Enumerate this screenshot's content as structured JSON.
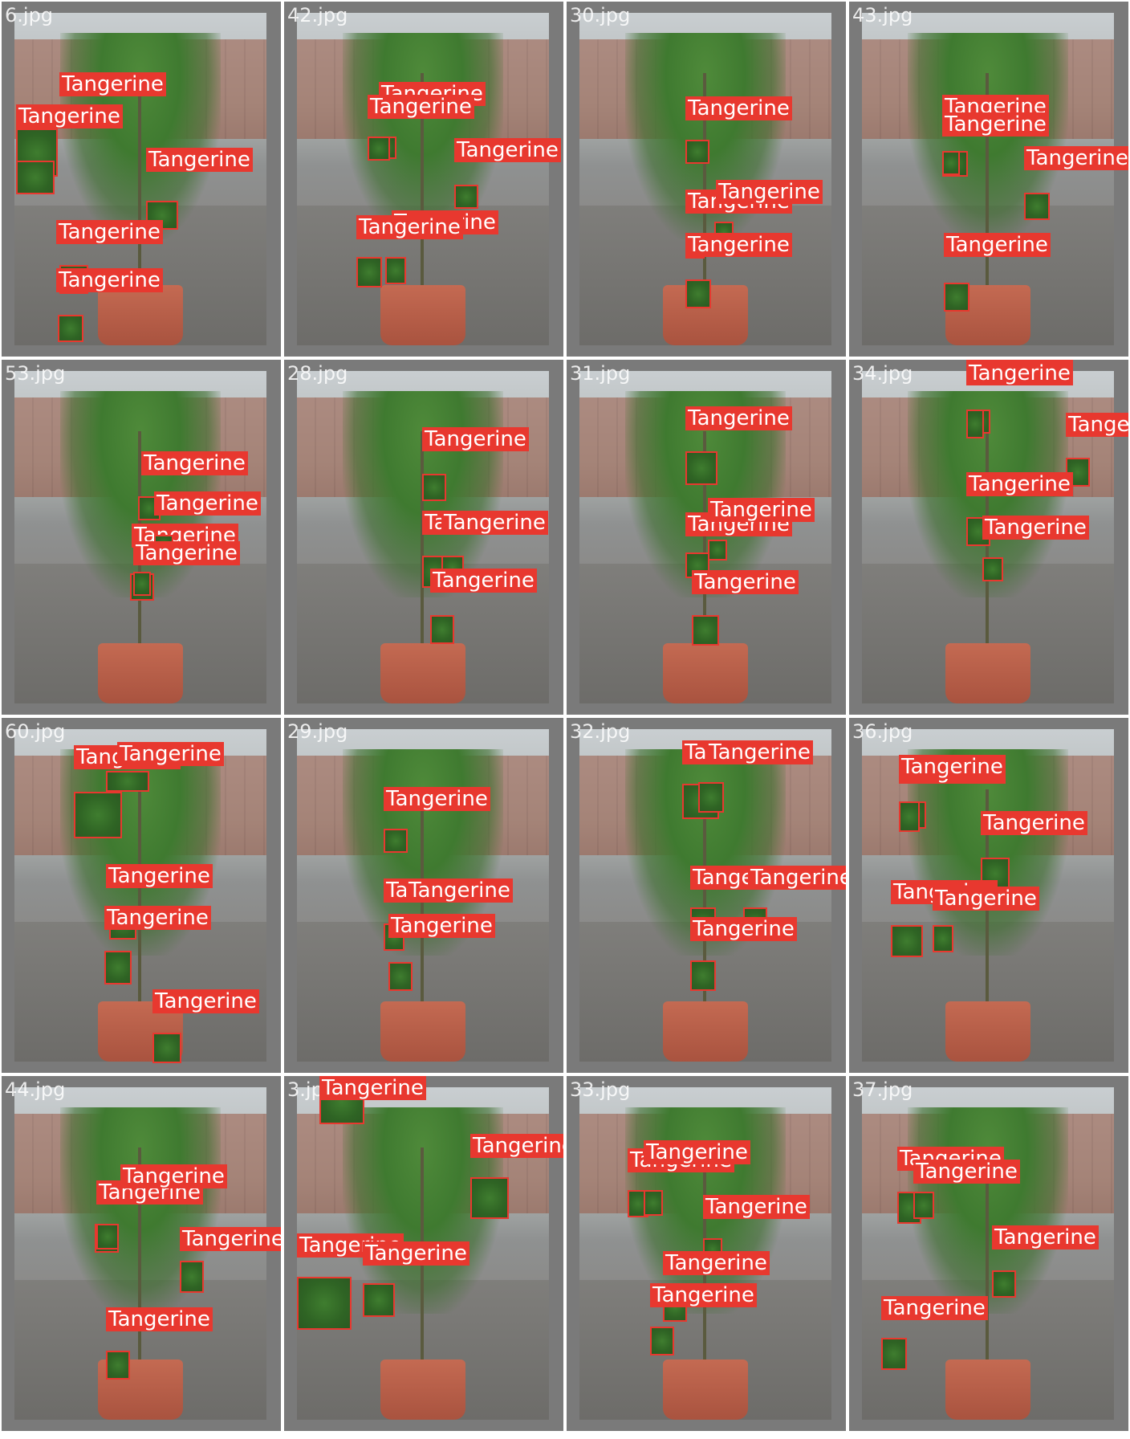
{
  "label_color": "#e8382f",
  "tiles": [
    {
      "file": "6.jpg",
      "detections": [
        {
          "label": "Tangerine"
        },
        {
          "label": "Tangerine"
        },
        {
          "label": "Tangerine"
        },
        {
          "label": "Tangerine"
        },
        {
          "label": "Tangerine"
        }
      ]
    },
    {
      "file": "42.jpg",
      "detections": [
        {
          "label": "Tangerine"
        },
        {
          "label": "Tangerine"
        },
        {
          "label": "Tangerine"
        },
        {
          "label": "Tangerine"
        },
        {
          "label": "Tangerine"
        }
      ]
    },
    {
      "file": "30.jpg",
      "detections": [
        {
          "label": "Tangerine"
        },
        {
          "label": "Tangerine"
        },
        {
          "label": "Tangerine"
        },
        {
          "label": "Tangerine"
        }
      ]
    },
    {
      "file": "43.jpg",
      "detections": [
        {
          "label": "Tangerine"
        },
        {
          "label": "Tangerine"
        },
        {
          "label": "Tangerine"
        },
        {
          "label": "Tangerine"
        }
      ]
    },
    {
      "file": "53.jpg",
      "detections": [
        {
          "label": "Tangerine"
        },
        {
          "label": "Tangerine"
        },
        {
          "label": "Tangerine"
        },
        {
          "label": "Tangerine"
        }
      ]
    },
    {
      "file": "28.jpg",
      "detections": [
        {
          "label": "Tangerine"
        },
        {
          "label": "Tangerine"
        },
        {
          "label": "Tangerine"
        },
        {
          "label": "Tangerine"
        }
      ]
    },
    {
      "file": "31.jpg",
      "detections": [
        {
          "label": "Tangerine"
        },
        {
          "label": "Tangerine"
        },
        {
          "label": "Tangerine"
        },
        {
          "label": "Tangerine"
        }
      ]
    },
    {
      "file": "34.jpg",
      "detections": [
        {
          "label": "Tangerine"
        },
        {
          "label": "Tangerine"
        },
        {
          "label": "Tangerine"
        },
        {
          "label": "Tangerine"
        },
        {
          "label": "Tangerine"
        }
      ]
    },
    {
      "file": "60.jpg",
      "detections": [
        {
          "label": "Tangerine"
        },
        {
          "label": "Tangerine"
        },
        {
          "label": "Tangerine"
        },
        {
          "label": "Tangerine"
        },
        {
          "label": "Tangerine"
        }
      ]
    },
    {
      "file": "29.jpg",
      "detections": [
        {
          "label": "Tangerine"
        },
        {
          "label": "Tangerine"
        },
        {
          "label": "Tangerine"
        },
        {
          "label": "Tangerine"
        }
      ]
    },
    {
      "file": "32.jpg",
      "detections": [
        {
          "label": "Tangerine"
        },
        {
          "label": "Tangerine"
        },
        {
          "label": "Tangerine"
        },
        {
          "label": "Tangerine"
        },
        {
          "label": "Tangerine"
        }
      ]
    },
    {
      "file": "36.jpg",
      "detections": [
        {
          "label": "Tangerine"
        },
        {
          "label": "Tangerine"
        },
        {
          "label": "Tangerine"
        },
        {
          "label": "Tangerine"
        },
        {
          "label": "Tangerine"
        }
      ]
    },
    {
      "file": "44.jpg",
      "detections": [
        {
          "label": "Tangerine"
        },
        {
          "label": "Tangerine"
        },
        {
          "label": "Tangerine"
        },
        {
          "label": "Tangerine"
        }
      ]
    },
    {
      "file": "3.jpg",
      "detections": [
        {
          "label": "Tangerine"
        },
        {
          "label": "Tangerine"
        },
        {
          "label": "Tangerine"
        },
        {
          "label": "Tangerine"
        }
      ]
    },
    {
      "file": "33.jpg",
      "detections": [
        {
          "label": "Tangerine"
        },
        {
          "label": "Tangerine"
        },
        {
          "label": "Tangerine"
        },
        {
          "label": "Tangerine"
        },
        {
          "label": "Tangerine"
        }
      ]
    },
    {
      "file": "37.jpg",
      "detections": [
        {
          "label": "Tangerine"
        },
        {
          "label": "Tangerine"
        },
        {
          "label": "Tangerine"
        },
        {
          "label": "Tangerine"
        }
      ]
    }
  ]
}
